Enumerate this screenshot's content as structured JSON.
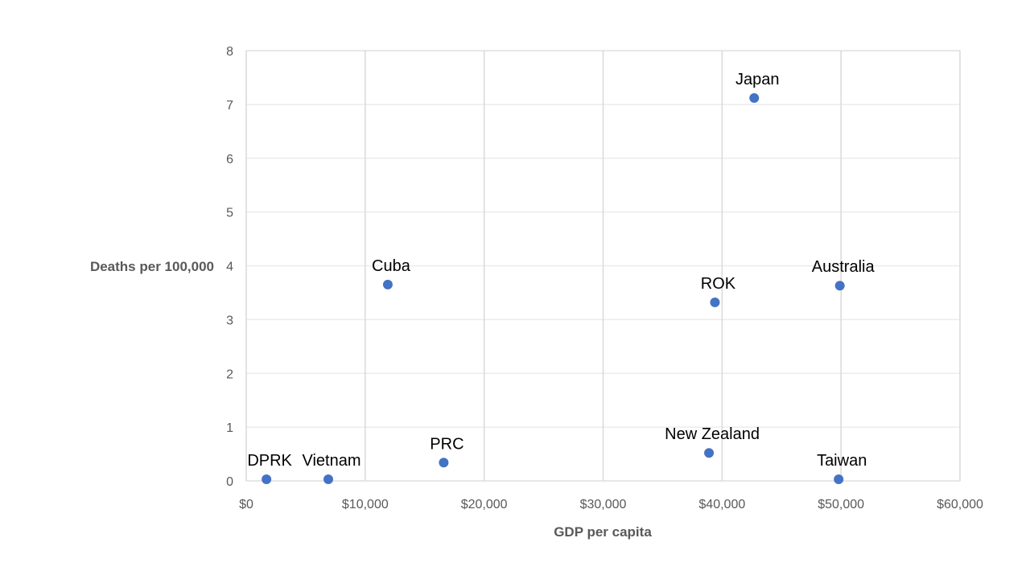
{
  "chart_data": {
    "type": "scatter",
    "title": "",
    "xlabel": "GDP per capita",
    "ylabel": "Deaths per 100,000",
    "xlim": [
      0,
      60000
    ],
    "ylim": [
      0,
      8
    ],
    "xticks": [
      0,
      10000,
      20000,
      30000,
      40000,
      50000,
      60000
    ],
    "xtick_labels": [
      "$0",
      "$10,000",
      "$20,000",
      "$30,000",
      "$40,000",
      "$50,000",
      "$60,000"
    ],
    "yticks": [
      0,
      1,
      2,
      3,
      4,
      5,
      6,
      7,
      8
    ],
    "ytick_labels": [
      "0",
      "1",
      "2",
      "3",
      "4",
      "5",
      "6",
      "7",
      "8"
    ],
    "grid": true,
    "legend": "none",
    "marker_color": "#4472C4",
    "points": [
      {
        "label": "DPRK",
        "x": 1700,
        "y": 0.03
      },
      {
        "label": "Vietnam",
        "x": 6900,
        "y": 0.03
      },
      {
        "label": "Cuba",
        "x": 11900,
        "y": 3.65
      },
      {
        "label": "PRC",
        "x": 16600,
        "y": 0.34
      },
      {
        "label": "New Zealand",
        "x": 38900,
        "y": 0.52
      },
      {
        "label": "ROK",
        "x": 39400,
        "y": 3.32
      },
      {
        "label": "Japan",
        "x": 42700,
        "y": 7.12
      },
      {
        "label": "Australia",
        "x": 49900,
        "y": 3.63
      },
      {
        "label": "Taiwan",
        "x": 49800,
        "y": 0.03
      }
    ]
  }
}
